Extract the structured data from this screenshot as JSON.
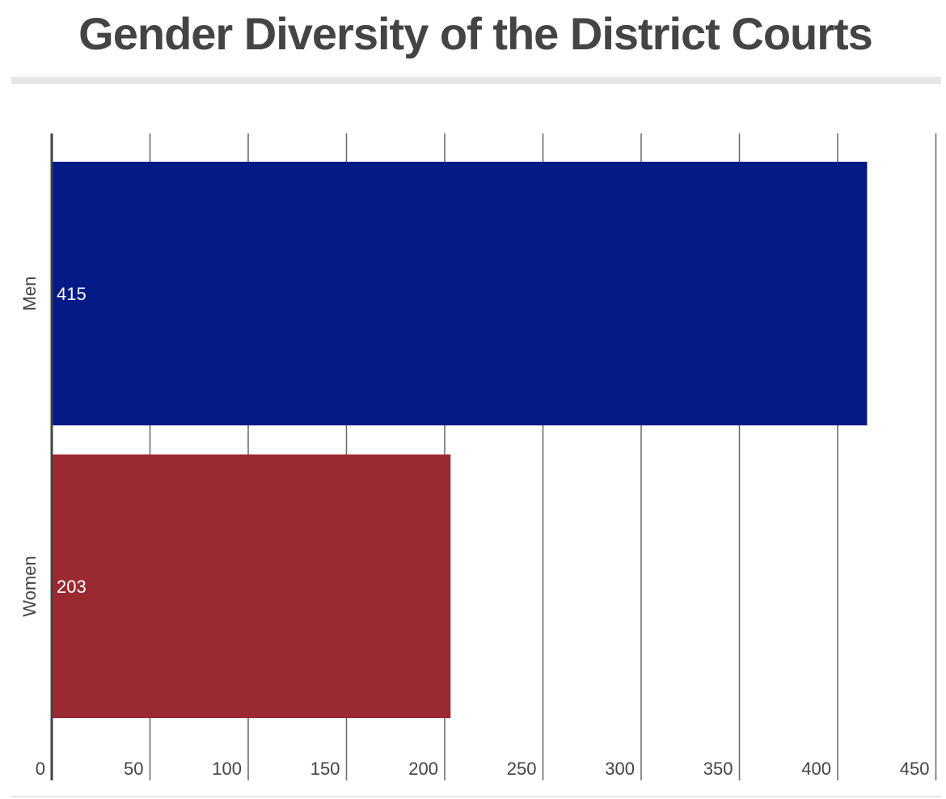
{
  "chart_data": {
    "type": "bar",
    "orientation": "horizontal",
    "title": "Gender Diversity of the District Courts",
    "categories": [
      "Men",
      "Women"
    ],
    "values": [
      415,
      203
    ],
    "data_labels": [
      "415",
      "203"
    ],
    "bar_colors": [
      "#041a85",
      "#9a2931"
    ],
    "xlim": [
      0,
      450
    ],
    "x_ticks": [
      0,
      50,
      100,
      150,
      200,
      250,
      300,
      350,
      400,
      450
    ],
    "x_tick_labels": [
      "0",
      "50",
      "100",
      "150",
      "200",
      "250",
      "300",
      "350",
      "400",
      "450"
    ],
    "grid": "vertical",
    "legend": "none"
  }
}
